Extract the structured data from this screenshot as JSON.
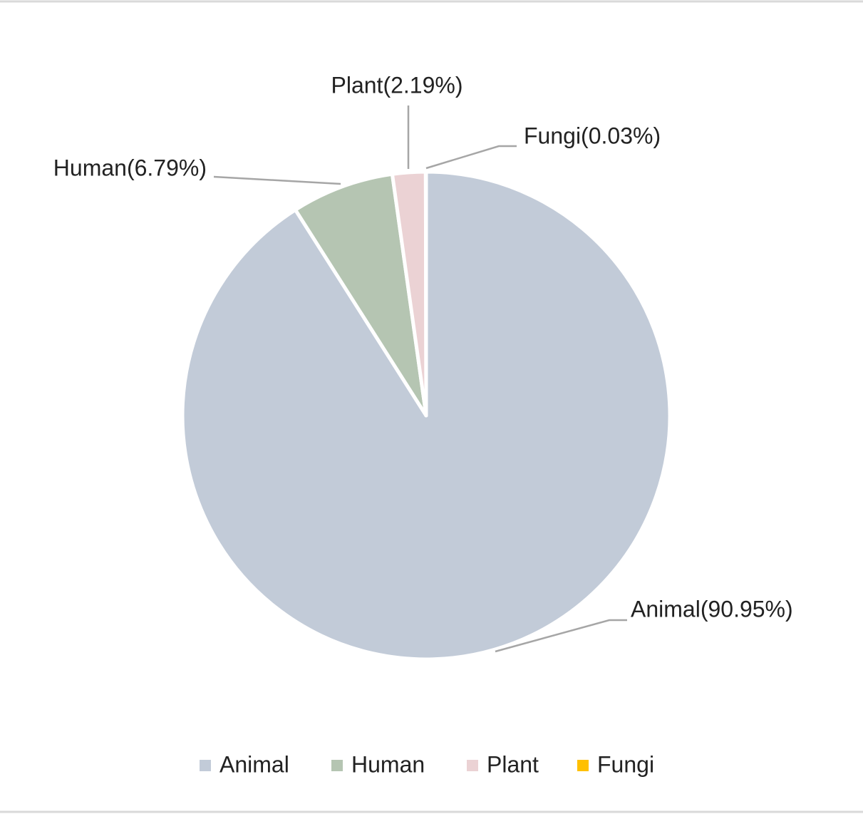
{
  "chart_data": {
    "type": "pie",
    "categories": [
      "Animal",
      "Human",
      "Plant",
      "Fungi"
    ],
    "values": [
      90.95,
      6.79,
      2.19,
      0.03
    ],
    "value_labels": [
      "Animal(90.95%)",
      "Human(6.79%)",
      "Plant(2.19%)",
      "Fungi(0.03%)"
    ],
    "colors": [
      "#c2cbd8",
      "#b5c5b2",
      "#ebd2d4",
      "#ffc000"
    ],
    "legend": "bottom"
  }
}
